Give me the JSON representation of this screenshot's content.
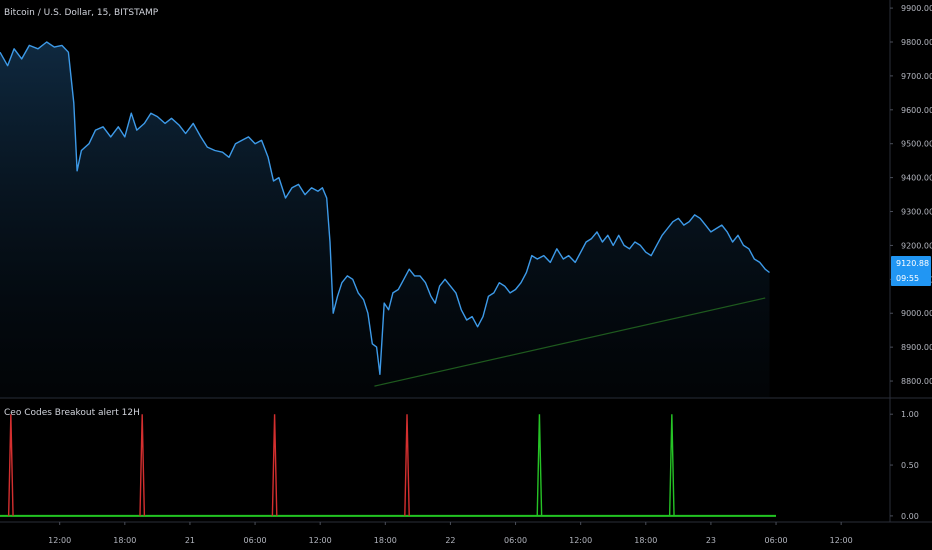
{
  "header": {
    "symbol_title": "Bitcoin / U.S. Dollar, 15, BITSTAMP",
    "indicator_title": "Ceo Codes Breakout alert 12H"
  },
  "price_badge": {
    "price": "9120.88",
    "countdown": "09:55"
  },
  "colors": {
    "background": "#000000",
    "price_line": "#3d9ae8",
    "trendline": "#1e5a1e",
    "signal_sell": "#d32f2f",
    "signal_buy": "#26c326",
    "baseline": "#22c422",
    "badge_bg": "#2196f3"
  },
  "chart_data": [
    {
      "type": "line",
      "name": "price",
      "y_ticks": [
        8800,
        8900,
        9000,
        9100,
        9200,
        9300,
        9400,
        9500,
        9600,
        9700,
        9800,
        9900
      ],
      "y_tick_labels": [
        "8800.00",
        "8900.00",
        "9000.00",
        "9100.00",
        "9200.00",
        "9300.00",
        "9400.00",
        "9500.00",
        "9600.00",
        "9700.00",
        "9800.00",
        "9900.00"
      ],
      "ylim": [
        8750,
        9915
      ],
      "x_ticks": [
        "12:00",
        "18:00",
        "21",
        "06:00",
        "12:00",
        "18:00",
        "22",
        "06:00",
        "12:00",
        "18:00",
        "23",
        "06:00",
        "12:00"
      ],
      "x_tick_hours": [
        12,
        18,
        24,
        30,
        36,
        42,
        48,
        54,
        60,
        66,
        72,
        78,
        84
      ],
      "xlim_hours": [
        6.5,
        88.5
      ],
      "series": [
        {
          "points": [
            [
              6.5,
              9770
            ],
            [
              7.2,
              9730
            ],
            [
              7.8,
              9780
            ],
            [
              8.5,
              9750
            ],
            [
              9.2,
              9790
            ],
            [
              10.0,
              9780
            ],
            [
              10.8,
              9800
            ],
            [
              11.5,
              9785
            ],
            [
              12.2,
              9790
            ],
            [
              12.8,
              9770
            ],
            [
              13.3,
              9620
            ],
            [
              13.6,
              9420
            ],
            [
              14.0,
              9480
            ],
            [
              14.7,
              9500
            ],
            [
              15.3,
              9540
            ],
            [
              16.0,
              9550
            ],
            [
              16.7,
              9520
            ],
            [
              17.4,
              9550
            ],
            [
              18.0,
              9520
            ],
            [
              18.6,
              9590
            ],
            [
              19.1,
              9540
            ],
            [
              19.8,
              9560
            ],
            [
              20.4,
              9590
            ],
            [
              21.0,
              9580
            ],
            [
              21.7,
              9560
            ],
            [
              22.3,
              9575
            ],
            [
              23.0,
              9555
            ],
            [
              23.6,
              9530
            ],
            [
              24.3,
              9560
            ],
            [
              25.0,
              9520
            ],
            [
              25.6,
              9490
            ],
            [
              26.3,
              9480
            ],
            [
              27.0,
              9475
            ],
            [
              27.6,
              9460
            ],
            [
              28.2,
              9500
            ],
            [
              28.8,
              9510
            ],
            [
              29.4,
              9520
            ],
            [
              30.0,
              9500
            ],
            [
              30.6,
              9510
            ],
            [
              31.2,
              9460
            ],
            [
              31.7,
              9390
            ],
            [
              32.2,
              9400
            ],
            [
              32.8,
              9340
            ],
            [
              33.4,
              9370
            ],
            [
              34.0,
              9380
            ],
            [
              34.6,
              9350
            ],
            [
              35.2,
              9370
            ],
            [
              35.8,
              9360
            ],
            [
              36.2,
              9370
            ],
            [
              36.6,
              9340
            ],
            [
              36.9,
              9210
            ],
            [
              37.2,
              9000
            ],
            [
              37.6,
              9050
            ],
            [
              38.0,
              9090
            ],
            [
              38.5,
              9110
            ],
            [
              39.0,
              9100
            ],
            [
              39.5,
              9060
            ],
            [
              40.0,
              9040
            ],
            [
              40.4,
              9000
            ],
            [
              40.8,
              8910
            ],
            [
              41.2,
              8900
            ],
            [
              41.5,
              8820
            ],
            [
              41.9,
              9030
            ],
            [
              42.3,
              9010
            ],
            [
              42.7,
              9060
            ],
            [
              43.2,
              9070
            ],
            [
              43.7,
              9100
            ],
            [
              44.2,
              9130
            ],
            [
              44.7,
              9110
            ],
            [
              45.2,
              9110
            ],
            [
              45.7,
              9090
            ],
            [
              46.2,
              9050
            ],
            [
              46.6,
              9030
            ],
            [
              47.0,
              9080
            ],
            [
              47.5,
              9100
            ],
            [
              48.0,
              9080
            ],
            [
              48.5,
              9060
            ],
            [
              49.0,
              9010
            ],
            [
              49.5,
              8980
            ],
            [
              50.0,
              8990
            ],
            [
              50.5,
              8960
            ],
            [
              51.0,
              8990
            ],
            [
              51.5,
              9050
            ],
            [
              52.0,
              9060
            ],
            [
              52.5,
              9090
            ],
            [
              53.0,
              9080
            ],
            [
              53.5,
              9060
            ],
            [
              54.0,
              9070
            ],
            [
              54.5,
              9090
            ],
            [
              55.0,
              9120
            ],
            [
              55.5,
              9170
            ],
            [
              56.0,
              9160
            ],
            [
              56.6,
              9170
            ],
            [
              57.2,
              9150
            ],
            [
              57.8,
              9190
            ],
            [
              58.4,
              9160
            ],
            [
              58.9,
              9170
            ],
            [
              59.5,
              9150
            ],
            [
              60.0,
              9180
            ],
            [
              60.5,
              9210
            ],
            [
              61.0,
              9220
            ],
            [
              61.5,
              9240
            ],
            [
              62.0,
              9210
            ],
            [
              62.5,
              9230
            ],
            [
              63.0,
              9200
            ],
            [
              63.5,
              9230
            ],
            [
              64.0,
              9200
            ],
            [
              64.5,
              9190
            ],
            [
              65.0,
              9210
            ],
            [
              65.5,
              9200
            ],
            [
              66.0,
              9180
            ],
            [
              66.5,
              9170
            ],
            [
              67.0,
              9200
            ],
            [
              67.5,
              9230
            ],
            [
              68.0,
              9250
            ],
            [
              68.5,
              9270
            ],
            [
              69.0,
              9280
            ],
            [
              69.5,
              9260
            ],
            [
              70.0,
              9270
            ],
            [
              70.5,
              9290
            ],
            [
              71.0,
              9280
            ],
            [
              71.5,
              9260
            ],
            [
              72.0,
              9240
            ],
            [
              72.5,
              9250
            ],
            [
              73.0,
              9260
            ],
            [
              73.5,
              9240
            ],
            [
              74.0,
              9210
            ],
            [
              74.5,
              9230
            ],
            [
              75.0,
              9200
            ],
            [
              75.5,
              9190
            ],
            [
              76.0,
              9160
            ],
            [
              76.5,
              9150
            ],
            [
              77.0,
              9130
            ],
            [
              77.4,
              9120
            ]
          ]
        }
      ],
      "trendline": [
        [
          41.0,
          8785
        ],
        [
          77.0,
          9045
        ]
      ]
    },
    {
      "type": "line",
      "name": "Ceo Codes Breakout alert 12H",
      "y_ticks": [
        0,
        0.5,
        1
      ],
      "y_tick_labels": [
        "0.00",
        "0.50",
        "1.00"
      ],
      "ylim": [
        -0.06,
        1.12
      ],
      "baseline_value": 0,
      "spikes": [
        {
          "hour": 7.5,
          "value": 1,
          "signal": "sell"
        },
        {
          "hour": 19.6,
          "value": 1,
          "signal": "sell"
        },
        {
          "hour": 31.8,
          "value": 1,
          "signal": "sell"
        },
        {
          "hour": 44.0,
          "value": 1,
          "signal": "sell"
        },
        {
          "hour": 56.2,
          "value": 1,
          "signal": "buy"
        },
        {
          "hour": 68.4,
          "value": 1,
          "signal": "buy"
        }
      ]
    }
  ]
}
